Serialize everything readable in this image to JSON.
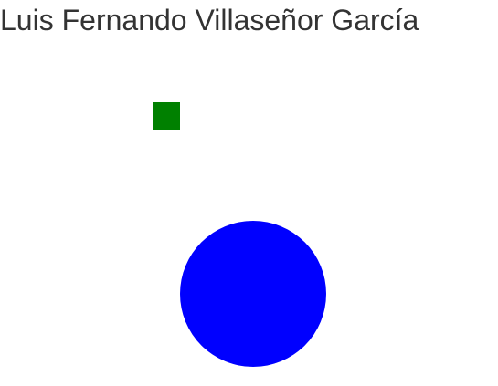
{
  "header": {
    "title": "Luis Fernando Villaseñor García"
  },
  "shapes": {
    "square": {
      "color": "#008000"
    },
    "circle": {
      "color": "#0000ff"
    }
  }
}
